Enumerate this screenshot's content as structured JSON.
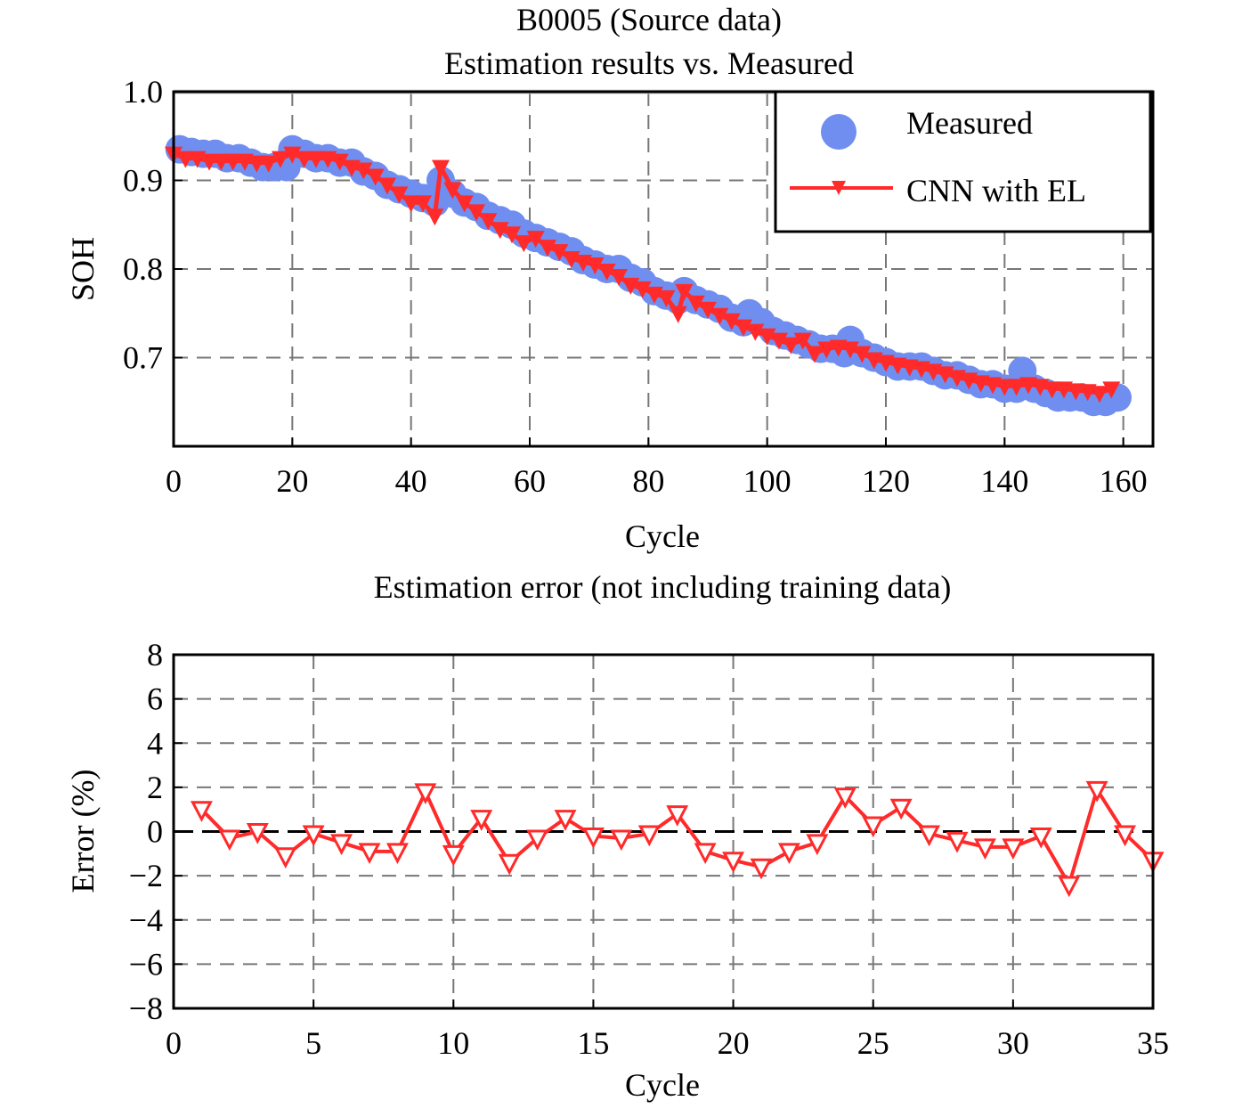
{
  "colors": {
    "measured": "#6f8ef0",
    "estimate": "#ff2a2a",
    "grid": "#777777",
    "axis": "#000000"
  },
  "chart_data": [
    {
      "type": "line",
      "title": "B0005 (Source data)",
      "subtitle": "Estimation results vs. Measured",
      "xlabel": "Cycle",
      "ylabel": "SOH",
      "xlim": [
        0,
        165
      ],
      "ylim": [
        0.6,
        1.0
      ],
      "xticks": [
        0,
        20,
        40,
        60,
        80,
        100,
        120,
        140,
        160
      ],
      "yticks": [
        0.7,
        0.8,
        0.9,
        1.0
      ],
      "ytick_labels": [
        "0.7",
        "0.8",
        "0.9",
        "1.0"
      ],
      "grid": true,
      "legend": "top-right",
      "series": [
        {
          "name": "Measured",
          "style": "circle markers",
          "x": [
            1,
            3,
            5,
            7,
            9,
            11,
            13,
            15,
            17,
            19,
            20,
            22,
            24,
            26,
            28,
            30,
            32,
            34,
            36,
            38,
            40,
            42,
            44,
            45,
            47,
            49,
            51,
            53,
            55,
            57,
            59,
            61,
            63,
            65,
            67,
            69,
            71,
            73,
            75,
            77,
            79,
            81,
            83,
            85,
            86,
            88,
            90,
            92,
            94,
            96,
            97,
            99,
            101,
            103,
            105,
            107,
            109,
            111,
            113,
            114,
            116,
            118,
            120,
            122,
            124,
            126,
            128,
            130,
            132,
            134,
            136,
            138,
            140,
            142,
            143,
            145,
            147,
            149,
            151,
            153,
            155,
            157,
            159
          ],
          "values": [
            0.935,
            0.932,
            0.93,
            0.93,
            0.925,
            0.925,
            0.92,
            0.915,
            0.915,
            0.915,
            0.935,
            0.93,
            0.925,
            0.925,
            0.92,
            0.92,
            0.91,
            0.905,
            0.895,
            0.89,
            0.885,
            0.88,
            0.875,
            0.9,
            0.885,
            0.875,
            0.87,
            0.86,
            0.855,
            0.85,
            0.84,
            0.835,
            0.83,
            0.825,
            0.82,
            0.81,
            0.805,
            0.8,
            0.8,
            0.79,
            0.785,
            0.775,
            0.77,
            0.765,
            0.775,
            0.765,
            0.76,
            0.755,
            0.745,
            0.74,
            0.75,
            0.74,
            0.73,
            0.725,
            0.72,
            0.715,
            0.71,
            0.71,
            0.705,
            0.72,
            0.705,
            0.7,
            0.695,
            0.69,
            0.69,
            0.69,
            0.685,
            0.68,
            0.68,
            0.675,
            0.67,
            0.67,
            0.665,
            0.665,
            0.685,
            0.665,
            0.66,
            0.655,
            0.655,
            0.655,
            0.65,
            0.65,
            0.655
          ]
        },
        {
          "name": "CNN with EL",
          "style": "line with triangle-down markers",
          "x": [
            0,
            2,
            4,
            6,
            8,
            10,
            12,
            14,
            16,
            18,
            20,
            22,
            24,
            26,
            28,
            30,
            32,
            34,
            36,
            38,
            40,
            42,
            44,
            45,
            47,
            49,
            51,
            53,
            55,
            57,
            59,
            61,
            63,
            65,
            67,
            69,
            71,
            73,
            75,
            77,
            79,
            81,
            83,
            85,
            86,
            88,
            90,
            92,
            94,
            96,
            98,
            100,
            102,
            104,
            106,
            108,
            110,
            112,
            114,
            116,
            118,
            120,
            122,
            124,
            126,
            128,
            130,
            132,
            134,
            136,
            138,
            140,
            142,
            144,
            146,
            148,
            150,
            152,
            154,
            156,
            158
          ],
          "values": [
            0.93,
            0.925,
            0.925,
            0.922,
            0.922,
            0.922,
            0.922,
            0.92,
            0.92,
            0.925,
            0.93,
            0.925,
            0.925,
            0.925,
            0.922,
            0.915,
            0.912,
            0.905,
            0.895,
            0.885,
            0.875,
            0.875,
            0.86,
            0.915,
            0.89,
            0.875,
            0.865,
            0.855,
            0.845,
            0.84,
            0.83,
            0.835,
            0.825,
            0.82,
            0.812,
            0.808,
            0.805,
            0.798,
            0.792,
            0.782,
            0.778,
            0.772,
            0.768,
            0.75,
            0.775,
            0.762,
            0.755,
            0.748,
            0.742,
            0.735,
            0.73,
            0.725,
            0.72,
            0.715,
            0.72,
            0.705,
            0.71,
            0.712,
            0.71,
            0.705,
            0.698,
            0.695,
            0.692,
            0.69,
            0.688,
            0.685,
            0.682,
            0.678,
            0.675,
            0.672,
            0.67,
            0.668,
            0.668,
            0.67,
            0.668,
            0.665,
            0.665,
            0.663,
            0.662,
            0.66,
            0.665
          ]
        }
      ]
    },
    {
      "type": "line",
      "title": "Estimation error (not including training data)",
      "xlabel": "Cycle",
      "ylabel": "Error (%)",
      "xlim": [
        0,
        35
      ],
      "ylim": [
        -8,
        8
      ],
      "xticks": [
        0,
        5,
        10,
        15,
        20,
        25,
        30,
        35
      ],
      "yticks": [
        -8,
        -6,
        -4,
        -2,
        0,
        2,
        4,
        6,
        8
      ],
      "ytick_labels": [
        "−8",
        "−6",
        "−4",
        "−2",
        "0",
        "2",
        "4",
        "6",
        "8"
      ],
      "grid": true,
      "zero_line": true,
      "series": [
        {
          "style": "line with hollow triangle-down markers",
          "x": [
            1,
            2,
            3,
            4,
            5,
            6,
            7,
            8,
            9,
            10,
            11,
            12,
            13,
            14,
            15,
            16,
            17,
            18,
            19,
            20,
            21,
            22,
            23,
            24,
            25,
            26,
            27,
            28,
            29,
            30,
            31,
            32,
            33,
            34,
            35
          ],
          "values": [
            1.0,
            -0.3,
            0.0,
            -1.1,
            -0.1,
            -0.5,
            -0.9,
            -0.9,
            1.8,
            -1.0,
            0.6,
            -1.4,
            -0.3,
            0.6,
            -0.2,
            -0.3,
            -0.1,
            0.8,
            -0.9,
            -1.3,
            -1.6,
            -0.9,
            -0.5,
            1.6,
            0.3,
            1.1,
            -0.1,
            -0.4,
            -0.7,
            -0.7,
            -0.2,
            -2.4,
            1.9,
            -0.1,
            -1.3
          ]
        }
      ]
    }
  ]
}
